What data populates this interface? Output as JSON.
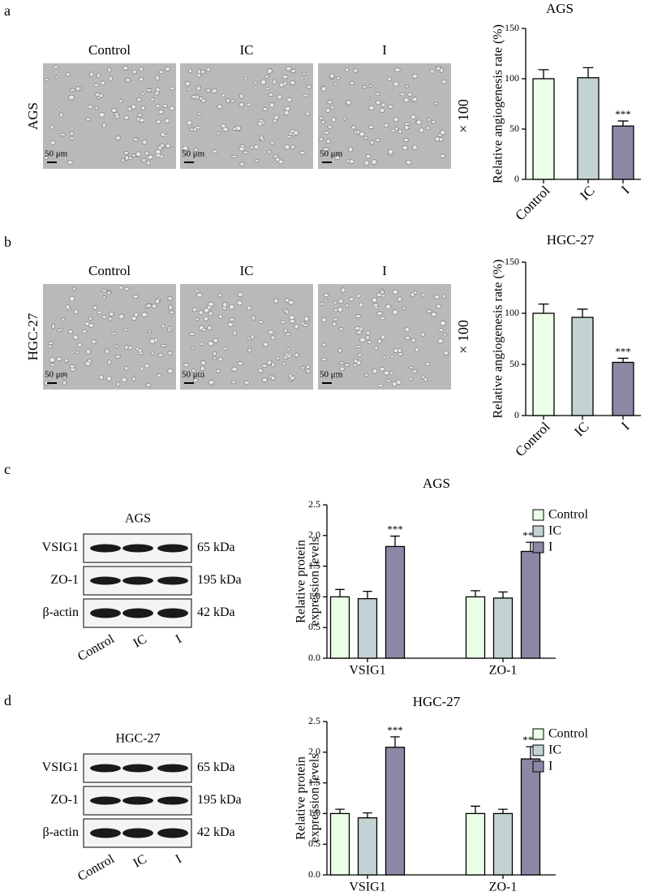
{
  "panels": [
    {
      "letter": "a",
      "images": {
        "row_label": "AGS",
        "columns": [
          "Control",
          "IC",
          "I"
        ],
        "scale_bar": "50 μm",
        "magnification": "× 100"
      }
    },
    {
      "letter": "b",
      "images": {
        "row_label": "HGC-27",
        "columns": [
          "Control",
          "IC",
          "I"
        ],
        "scale_bar": "50 μm",
        "magnification": "× 100"
      }
    },
    {
      "letter": "c",
      "blot": {
        "title": "AGS",
        "rows": [
          {
            "protein": "VSIG1",
            "size": "65 kDa"
          },
          {
            "protein": "ZO-1",
            "size": "195 kDa"
          },
          {
            "protein": "β-actin",
            "size": "42 kDa"
          }
        ],
        "lanes": [
          "Control",
          "IC",
          "I"
        ]
      }
    },
    {
      "letter": "d",
      "blot": {
        "title": "HGC-27",
        "rows": [
          {
            "protein": "VSIG1",
            "size": "65 kDa"
          },
          {
            "protein": "ZO-1",
            "size": "195 kDa"
          },
          {
            "protein": "β-actin",
            "size": "42 kDa"
          }
        ],
        "lanes": [
          "Control",
          "IC",
          "I"
        ]
      }
    }
  ],
  "chart_data": [
    {
      "type": "bar",
      "title": "AGS",
      "ylabel": "Relative angiogenesis rate (%)",
      "categories": [
        "Control",
        "IC",
        "I"
      ],
      "values": [
        100,
        101,
        53
      ],
      "errors": [
        9,
        10,
        5
      ],
      "colors": [
        "#eaffe6",
        "#c3d3d3",
        "#8b88a6"
      ],
      "significance": [
        null,
        null,
        "***"
      ],
      "ylim": [
        0,
        150
      ],
      "yticks": [
        0,
        50,
        100,
        150
      ]
    },
    {
      "type": "bar",
      "title": "HGC-27",
      "ylabel": "Relative angiogenesis rate (%)",
      "categories": [
        "Control",
        "IC",
        "I"
      ],
      "values": [
        100,
        96,
        52
      ],
      "errors": [
        9,
        8,
        4
      ],
      "colors": [
        "#eaffe6",
        "#c3d3d3",
        "#8b88a6"
      ],
      "significance": [
        null,
        null,
        "***"
      ],
      "ylim": [
        0,
        150
      ],
      "yticks": [
        0,
        50,
        100,
        150
      ]
    },
    {
      "type": "bar",
      "title": "AGS",
      "ylabel": [
        "Relative protein",
        "expression levels"
      ],
      "categories": [
        "VSIG1",
        "ZO-1"
      ],
      "legend": "upper right",
      "series": [
        {
          "name": "Control",
          "color": "#eaffe6",
          "values": [
            1.0,
            1.0
          ],
          "errors": [
            0.12,
            0.1
          ],
          "significance": [
            null,
            null
          ]
        },
        {
          "name": "IC",
          "color": "#c3d3d3",
          "values": [
            0.97,
            0.98
          ],
          "errors": [
            0.12,
            0.1
          ],
          "significance": [
            null,
            null
          ]
        },
        {
          "name": "I",
          "color": "#8b88a6",
          "values": [
            1.82,
            1.74
          ],
          "errors": [
            0.17,
            0.15
          ],
          "significance": [
            "***",
            "***"
          ]
        }
      ],
      "ylim": [
        0,
        2.5
      ],
      "yticks": [
        {
          "value": 0,
          "label": "0.0"
        },
        0.5,
        {
          "value": 1,
          "label": "1.0"
        },
        1.5,
        {
          "value": 2,
          "label": "2.0"
        },
        2.5
      ]
    },
    {
      "type": "bar",
      "title": "HGC-27",
      "ylabel": [
        "Relative protein",
        "expression levels"
      ],
      "categories": [
        "VSIG1",
        "ZO-1"
      ],
      "legend": "upper right",
      "series": [
        {
          "name": "Control",
          "color": "#eaffe6",
          "values": [
            1.0,
            1.0
          ],
          "errors": [
            0.07,
            0.12
          ],
          "significance": [
            null,
            null
          ]
        },
        {
          "name": "IC",
          "color": "#c3d3d3",
          "values": [
            0.93,
            1.0
          ],
          "errors": [
            0.08,
            0.07
          ],
          "significance": [
            null,
            null
          ]
        },
        {
          "name": "I",
          "color": "#8b88a6",
          "values": [
            2.08,
            1.89
          ],
          "errors": [
            0.17,
            0.2
          ],
          "significance": [
            "***",
            "***"
          ]
        }
      ],
      "ylim": [
        0,
        2.5
      ],
      "yticks": [
        {
          "value": 0,
          "label": "0.0"
        },
        0.5,
        {
          "value": 1,
          "label": "1.0"
        },
        1.5,
        {
          "value": 2,
          "label": "2.0"
        },
        2.5
      ]
    }
  ]
}
